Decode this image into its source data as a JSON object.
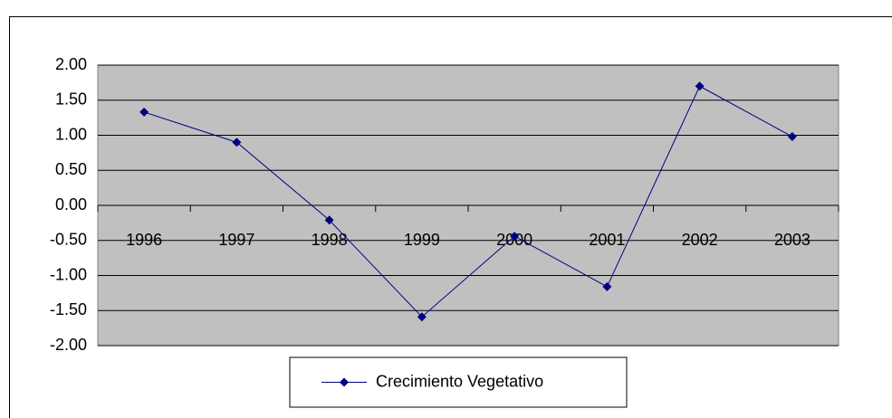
{
  "chart_data": {
    "type": "line",
    "categories": [
      "1996",
      "1997",
      "1998",
      "1999",
      "2000",
      "2001",
      "2002",
      "2003"
    ],
    "series": [
      {
        "name": "Crecimiento Vegetativo",
        "color": "#000080",
        "values": [
          1.33,
          0.9,
          -0.21,
          -1.59,
          -0.44,
          -1.16,
          1.7,
          0.98
        ]
      }
    ],
    "ylim": [
      -2,
      2
    ],
    "yticks": [
      {
        "value": -2,
        "label": "-2.00"
      },
      {
        "value": -1.5,
        "label": "-1.50"
      },
      {
        "value": -1,
        "label": "-1.00"
      },
      {
        "value": -0.5,
        "label": "-0.50"
      },
      {
        "value": 0,
        "label": "0.00"
      },
      {
        "value": 0.5,
        "label": "0.50"
      },
      {
        "value": 1,
        "label": "1.00"
      },
      {
        "value": 1.5,
        "label": "1.50"
      },
      {
        "value": 2,
        "label": "2.00"
      }
    ],
    "grid": true,
    "legend": "bottom"
  }
}
